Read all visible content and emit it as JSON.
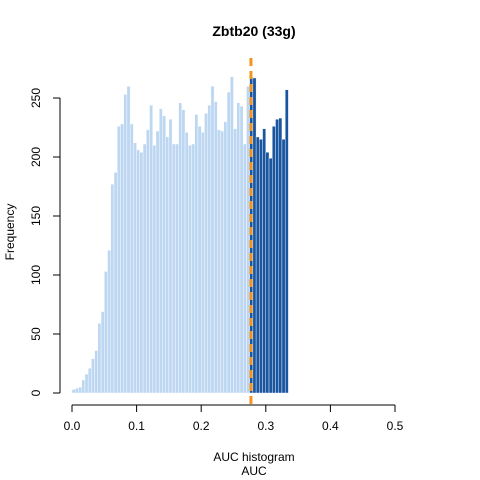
{
  "chart_data": {
    "type": "bar",
    "title": "Zbtb20 (33g)",
    "xlabel": "AUC histogram",
    "xlabel2": "AUC",
    "ylabel": "Frequency",
    "bin_start": 0.0,
    "bin_width": 0.005,
    "counts": [
      3,
      4,
      5,
      11,
      16,
      21,
      29,
      36,
      59,
      69,
      103,
      121,
      177,
      187,
      226,
      228,
      253,
      260,
      228,
      212,
      206,
      204,
      211,
      223,
      244,
      210,
      222,
      241,
      235,
      217,
      232,
      211,
      211,
      246,
      240,
      221,
      210,
      211,
      236,
      226,
      221,
      237,
      244,
      260,
      247,
      223,
      222,
      230,
      255,
      268,
      224,
      246,
      243,
      211,
      260,
      268,
      267,
      217,
      215,
      224,
      204,
      199,
      226,
      232,
      233,
      215,
      257
    ],
    "xlim": [
      0.0,
      0.57
    ],
    "ylim": [
      0,
      265
    ],
    "x_ticks": [
      "0.0",
      "0.1",
      "0.2",
      "0.3",
      "0.4",
      "0.5"
    ],
    "y_ticks": [
      "0",
      "50",
      "100",
      "150",
      "200",
      "250"
    ],
    "threshold": 0.277,
    "colors": {
      "below": "#bdd7f2",
      "above": "#1a56a0",
      "threshold": "#f5931e"
    }
  }
}
